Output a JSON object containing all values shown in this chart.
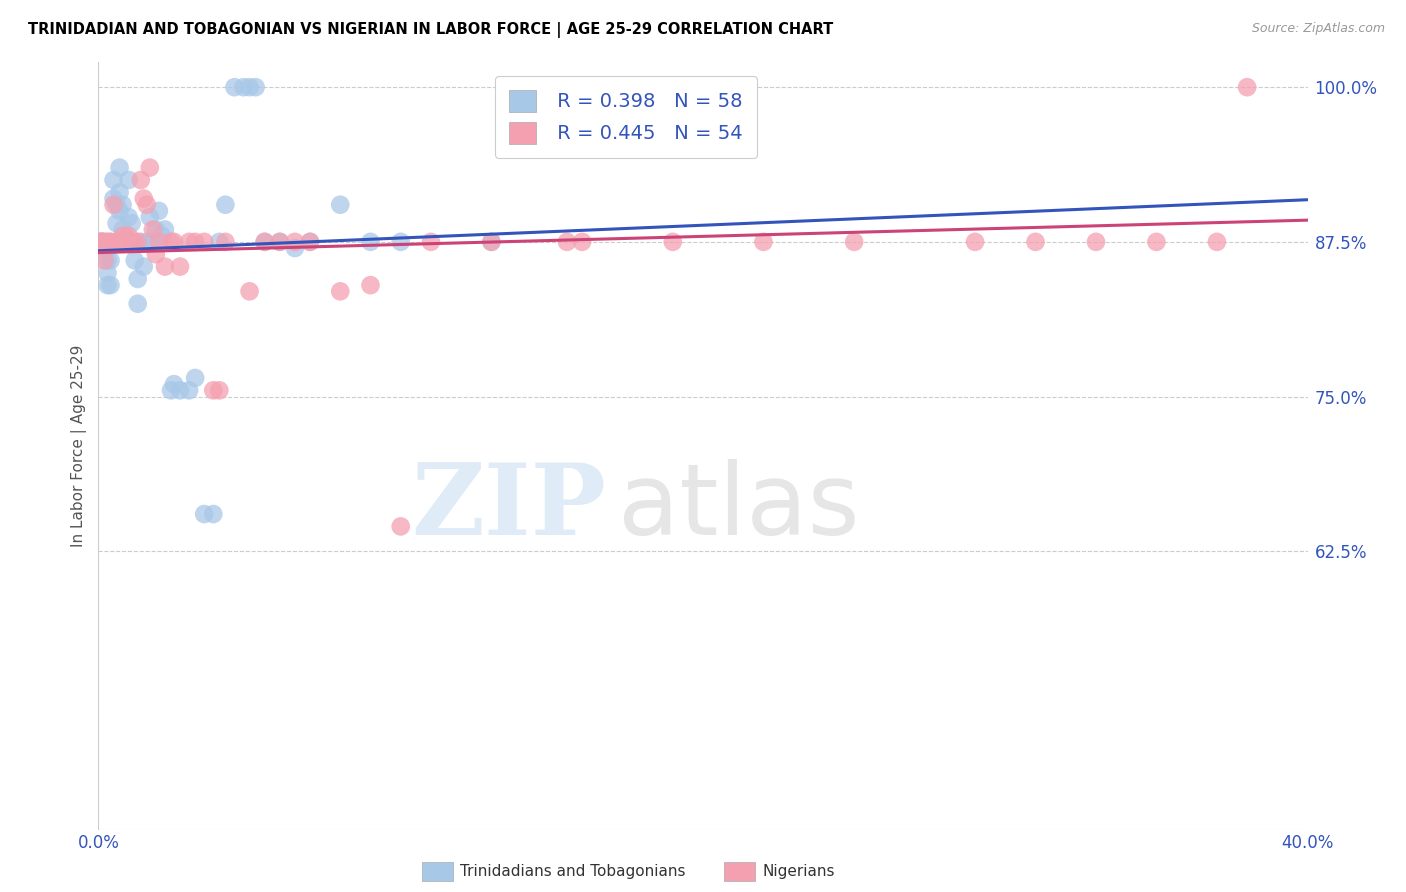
{
  "title": "TRINIDADIAN AND TOBAGONIAN VS NIGERIAN IN LABOR FORCE | AGE 25-29 CORRELATION CHART",
  "source": "Source: ZipAtlas.com",
  "ylabel": "In Labor Force | Age 25-29",
  "xlim": [
    0.0,
    0.4
  ],
  "ylim": [
    0.4,
    1.02
  ],
  "xticks": [
    0.0,
    0.05,
    0.1,
    0.15,
    0.2,
    0.25,
    0.3,
    0.35,
    0.4
  ],
  "xticklabels": [
    "0.0%",
    "",
    "",
    "",
    "",
    "",
    "",
    "",
    "40.0%"
  ],
  "yticks": [
    0.625,
    0.75,
    0.875,
    1.0
  ],
  "yticklabels": [
    "62.5%",
    "75.0%",
    "87.5%",
    "100.0%"
  ],
  "blue_color": "#A8C8E8",
  "pink_color": "#F4A0B0",
  "blue_line_color": "#3355BB",
  "pink_line_color": "#CC4477",
  "legend_R_blue": "R = 0.398",
  "legend_N_blue": "N = 58",
  "legend_R_pink": "R = 0.445",
  "legend_N_pink": "N = 54",
  "legend_label_blue": "Trinidadians and Tobagonians",
  "legend_label_pink": "Nigerians",
  "blue_x": [
    0.001,
    0.001,
    0.002,
    0.002,
    0.003,
    0.003,
    0.003,
    0.003,
    0.004,
    0.004,
    0.004,
    0.005,
    0.005,
    0.006,
    0.006,
    0.007,
    0.007,
    0.007,
    0.008,
    0.008,
    0.009,
    0.01,
    0.01,
    0.011,
    0.011,
    0.012,
    0.013,
    0.013,
    0.014,
    0.015,
    0.016,
    0.017,
    0.018,
    0.019,
    0.02,
    0.021,
    0.022,
    0.024,
    0.025,
    0.027,
    0.03,
    0.032,
    0.035,
    0.038,
    0.04,
    0.042,
    0.045,
    0.048,
    0.05,
    0.052,
    0.055,
    0.06,
    0.065,
    0.07,
    0.08,
    0.09,
    0.1,
    0.13
  ],
  "blue_y": [
    0.875,
    0.875,
    0.875,
    0.87,
    0.87,
    0.86,
    0.85,
    0.84,
    0.875,
    0.86,
    0.84,
    0.925,
    0.91,
    0.905,
    0.89,
    0.935,
    0.915,
    0.9,
    0.905,
    0.885,
    0.88,
    0.925,
    0.895,
    0.89,
    0.875,
    0.86,
    0.845,
    0.825,
    0.875,
    0.855,
    0.875,
    0.895,
    0.875,
    0.885,
    0.9,
    0.88,
    0.885,
    0.755,
    0.76,
    0.755,
    0.755,
    0.765,
    0.655,
    0.655,
    0.875,
    0.905,
    1.0,
    1.0,
    1.0,
    1.0,
    0.875,
    0.875,
    0.87,
    0.875,
    0.905,
    0.875,
    0.875,
    0.875
  ],
  "pink_x": [
    0.001,
    0.001,
    0.002,
    0.002,
    0.003,
    0.004,
    0.005,
    0.006,
    0.007,
    0.008,
    0.009,
    0.01,
    0.011,
    0.012,
    0.013,
    0.014,
    0.015,
    0.016,
    0.017,
    0.018,
    0.019,
    0.02,
    0.022,
    0.024,
    0.025,
    0.027,
    0.03,
    0.032,
    0.035,
    0.038,
    0.04,
    0.042,
    0.05,
    0.055,
    0.06,
    0.065,
    0.07,
    0.08,
    0.09,
    0.1,
    0.11,
    0.13,
    0.14,
    0.155,
    0.16,
    0.19,
    0.22,
    0.25,
    0.29,
    0.31,
    0.33,
    0.35,
    0.37,
    0.38
  ],
  "pink_y": [
    0.875,
    0.875,
    0.875,
    0.86,
    0.875,
    0.875,
    0.905,
    0.875,
    0.875,
    0.88,
    0.875,
    0.88,
    0.875,
    0.875,
    0.875,
    0.925,
    0.91,
    0.905,
    0.935,
    0.885,
    0.865,
    0.875,
    0.855,
    0.875,
    0.875,
    0.855,
    0.875,
    0.875,
    0.875,
    0.755,
    0.755,
    0.875,
    0.835,
    0.875,
    0.875,
    0.875,
    0.875,
    0.835,
    0.84,
    0.645,
    0.875,
    0.875,
    1.0,
    0.875,
    0.875,
    0.875,
    0.875,
    0.875,
    0.875,
    0.875,
    0.875,
    0.875,
    0.875,
    1.0
  ]
}
